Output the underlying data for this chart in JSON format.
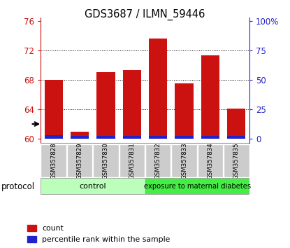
{
  "title": "GDS3687 / ILMN_59446",
  "samples": [
    "GSM357828",
    "GSM357829",
    "GSM357830",
    "GSM357831",
    "GSM357832",
    "GSM357833",
    "GSM357834",
    "GSM357835"
  ],
  "red_tops": [
    68.0,
    61.0,
    69.1,
    69.3,
    73.6,
    67.5,
    71.3,
    64.1
  ],
  "blue_tops": [
    60.7,
    60.5,
    60.4,
    60.4,
    60.4,
    60.5,
    60.45,
    60.5
  ],
  "blue_heights": [
    0.55,
    0.45,
    0.38,
    0.38,
    0.38,
    0.42,
    0.4,
    0.45
  ],
  "baseline": 60,
  "ylim_left": [
    59.5,
    76.5
  ],
  "yticks_left": [
    60,
    64,
    68,
    72,
    76
  ],
  "yticks_right_labels": [
    "0",
    "25",
    "50",
    "75",
    "100%"
  ],
  "yticks_right_vals": [
    60,
    64,
    68,
    72,
    76
  ],
  "gridlines": [
    64,
    68,
    72
  ],
  "bar_width": 0.7,
  "red_color": "#cc1111",
  "blue_color": "#2222cc",
  "control_label": "control",
  "diabetes_label": "exposure to maternal diabetes",
  "protocol_label": "protocol",
  "legend_red": "count",
  "legend_blue": "percentile rank within the sample",
  "control_bg": "#bbffbb",
  "diabetes_bg": "#44ee44",
  "tick_color_left": "#cc1111",
  "tick_color_right": "#2222cc"
}
